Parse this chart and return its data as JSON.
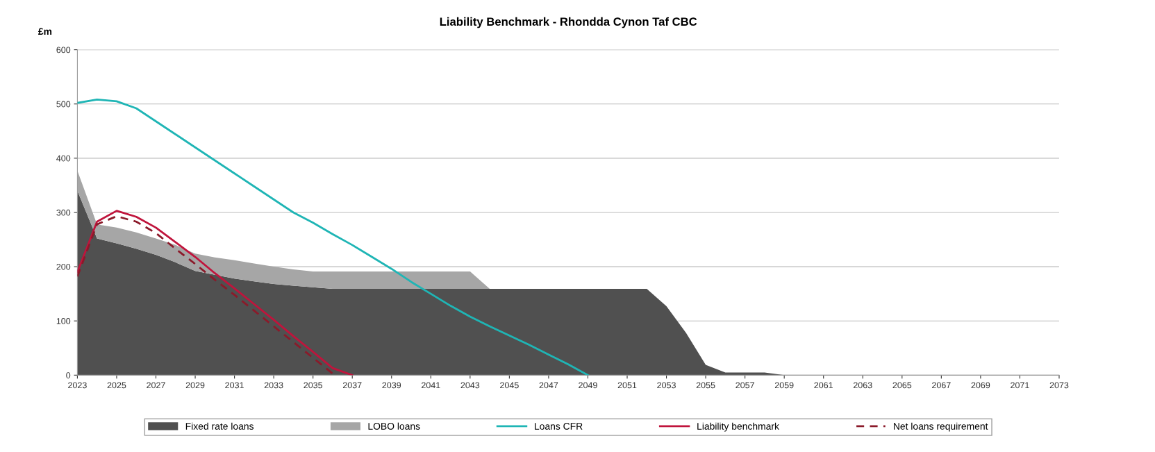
{
  "chart_data": {
    "type": "area",
    "title": "Liability Benchmark - Rhondda Cynon Taf CBC",
    "ylabel": "£m",
    "stacked": true,
    "grid": "y",
    "legend": "bottom",
    "xlim": [
      2023,
      2073
    ],
    "xticks": [
      2023,
      2025,
      2027,
      2029,
      2031,
      2033,
      2035,
      2037,
      2039,
      2041,
      2043,
      2045,
      2047,
      2049,
      2051,
      2053,
      2055,
      2057,
      2059,
      2061,
      2063,
      2065,
      2067,
      2069,
      2071,
      2073
    ],
    "ylim": [
      0,
      600
    ],
    "yticks": [
      0,
      100,
      200,
      300,
      400,
      500,
      600
    ],
    "series": [
      {
        "name": "Fixed rate loans",
        "color": "#505050",
        "x": [
          2023,
          2024,
          2025,
          2026,
          2027,
          2028,
          2029,
          2030,
          2031,
          2032,
          2033,
          2034,
          2035,
          2036,
          2037,
          2038,
          2039,
          2040,
          2041,
          2042,
          2043,
          2044,
          2045,
          2046,
          2047,
          2048,
          2049,
          2050,
          2051,
          2052,
          2053,
          2054,
          2055,
          2056,
          2057,
          2058,
          2059
        ],
        "values": [
          340,
          252,
          243,
          233,
          222,
          208,
          192,
          185,
          178,
          173,
          168,
          165,
          162,
          159,
          159,
          159,
          159,
          159,
          159,
          159,
          159,
          159,
          159,
          159,
          159,
          159,
          159,
          159,
          159,
          159,
          127,
          78,
          19,
          5,
          5,
          5,
          0
        ]
      },
      {
        "name": "LOBO loans",
        "color": "#a6a6a6",
        "x": [
          2023,
          2024,
          2025,
          2026,
          2027,
          2028,
          2029,
          2030,
          2031,
          2032,
          2033,
          2034,
          2035,
          2036,
          2037,
          2038,
          2039,
          2040,
          2041,
          2042,
          2043,
          2044
        ],
        "values": [
          37,
          26,
          29,
          30,
          30,
          32,
          32,
          32,
          34,
          33,
          32,
          30,
          29,
          32,
          32,
          32,
          32,
          32,
          32,
          32,
          32,
          0
        ]
      },
      {
        "name": "Loans CFR",
        "type": "line",
        "color": "#1fb5b5",
        "line_style": "solid",
        "x": [
          2023,
          2024,
          2025,
          2026,
          2027,
          2028,
          2029,
          2030,
          2031,
          2032,
          2033,
          2034,
          2035,
          2036,
          2037,
          2038,
          2039,
          2040,
          2041,
          2042,
          2043,
          2044,
          2045,
          2046,
          2047,
          2048,
          2049
        ],
        "values": [
          502,
          508,
          505,
          492,
          468,
          444,
          420,
          396,
          372,
          348,
          324,
          300,
          281,
          260,
          240,
          218,
          196,
          172,
          150,
          128,
          108,
          90,
          73,
          56,
          38,
          20,
          0
        ]
      },
      {
        "name": "Liability benchmark",
        "type": "line",
        "color": "#c0143c",
        "line_style": "solid",
        "x": [
          2023,
          2024,
          2025,
          2026,
          2027,
          2028,
          2029,
          2030,
          2031,
          2032,
          2033,
          2034,
          2035,
          2036,
          2037
        ],
        "values": [
          190,
          283,
          303,
          292,
          272,
          245,
          218,
          188,
          160,
          131,
          102,
          72,
          43,
          13,
          0
        ]
      },
      {
        "name": "Net loans requirement",
        "type": "line",
        "color": "#8b1a2a",
        "line_style": "dashed",
        "x": [
          2023,
          2024,
          2025,
          2026,
          2027,
          2028,
          2029,
          2030,
          2031,
          2032,
          2033,
          2034,
          2035,
          2036
        ],
        "values": [
          182,
          278,
          293,
          283,
          262,
          233,
          205,
          176,
          148,
          119,
          90,
          61,
          32,
          3
        ]
      }
    ]
  }
}
